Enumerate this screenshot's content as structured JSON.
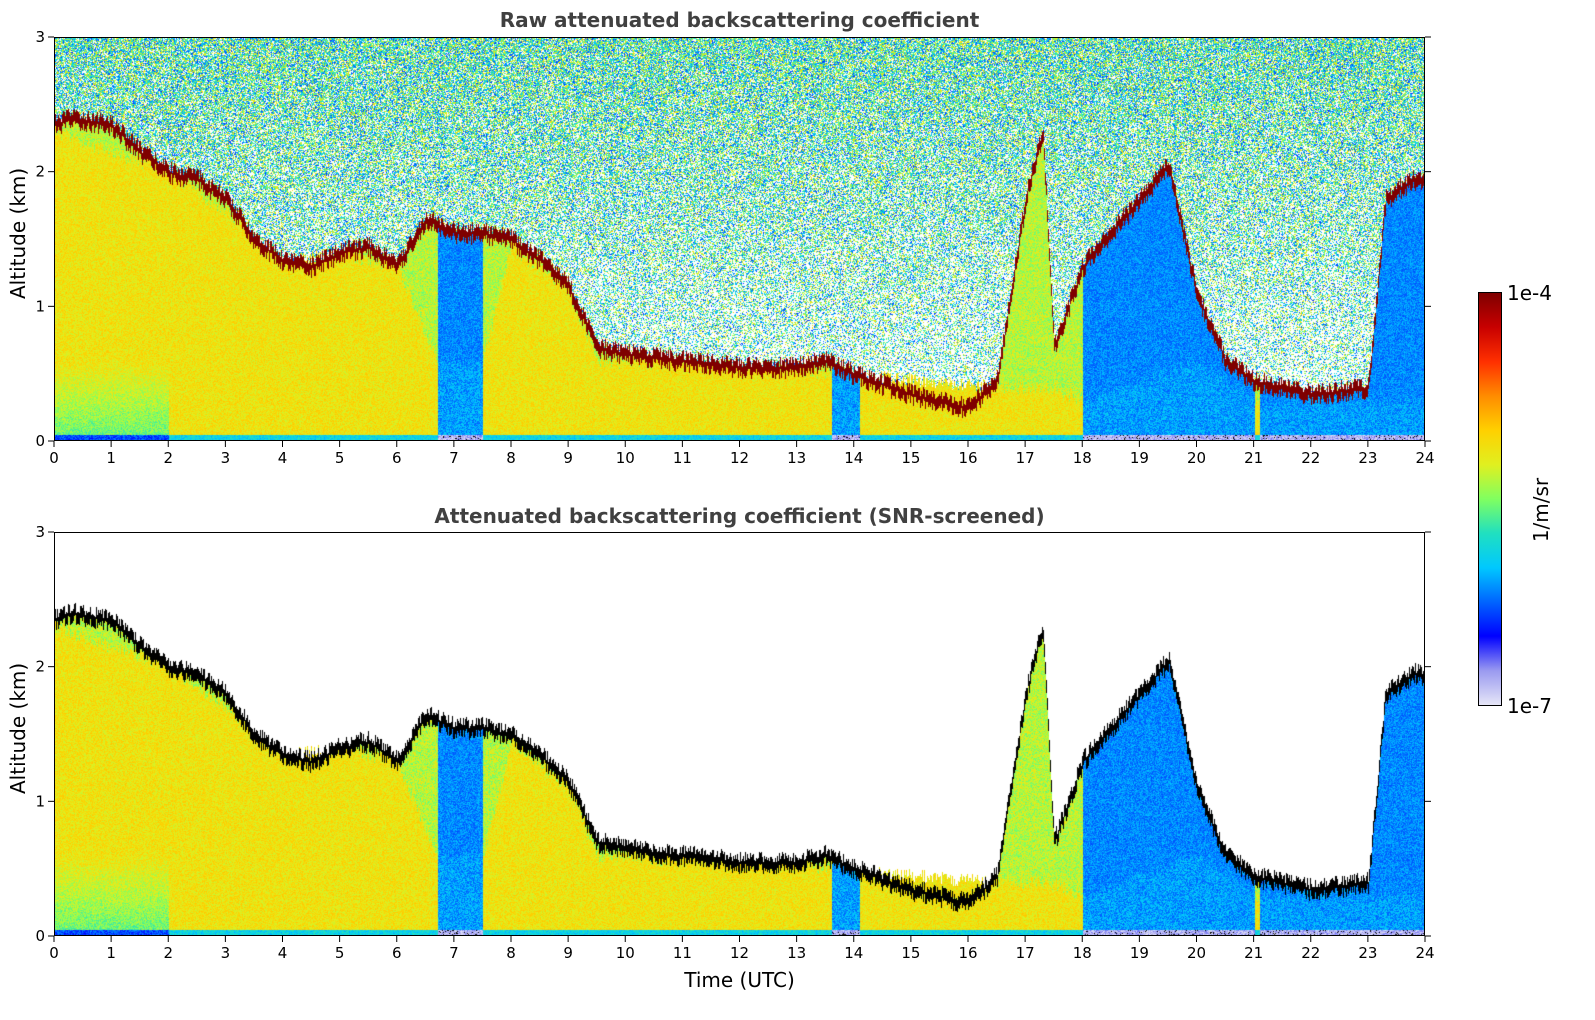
{
  "chart_data": [
    {
      "type": "heatmap",
      "title": "Raw attenuated backscattering coefficient",
      "xlabel": "",
      "ylabel": "Altitude (km)",
      "xlim": [
        0,
        24
      ],
      "ylim": [
        0,
        3
      ],
      "xticks": [
        "0",
        "1",
        "2",
        "3",
        "4",
        "5",
        "6",
        "7",
        "8",
        "9",
        "10",
        "11",
        "12",
        "13",
        "14",
        "15",
        "16",
        "17",
        "18",
        "19",
        "20",
        "21",
        "22",
        "23",
        "24"
      ],
      "yticks": [
        "0",
        "1",
        "2",
        "3"
      ],
      "noise": "raw",
      "cloud_layer_km": [
        [
          0.0,
          2.35
        ],
        [
          0.3,
          2.4
        ],
        [
          1.0,
          2.35
        ],
        [
          1.5,
          2.15
        ],
        [
          2.0,
          2.0
        ],
        [
          2.5,
          1.95
        ],
        [
          3.0,
          1.8
        ],
        [
          3.5,
          1.5
        ],
        [
          4.0,
          1.35
        ],
        [
          4.5,
          1.3
        ],
        [
          5.0,
          1.4
        ],
        [
          5.5,
          1.45
        ],
        [
          6.0,
          1.3
        ],
        [
          6.5,
          1.65
        ],
        [
          7.0,
          1.55
        ],
        [
          7.5,
          1.55
        ],
        [
          8.0,
          1.5
        ],
        [
          8.5,
          1.35
        ],
        [
          9.0,
          1.15
        ],
        [
          9.5,
          0.7
        ],
        [
          10.0,
          0.65
        ],
        [
          11.0,
          0.6
        ],
        [
          12.0,
          0.55
        ],
        [
          13.0,
          0.55
        ],
        [
          13.5,
          0.6
        ],
        [
          14.0,
          0.5
        ],
        [
          15.0,
          0.35
        ],
        [
          16.0,
          0.25
        ],
        [
          16.5,
          0.45
        ],
        [
          17.0,
          1.8
        ],
        [
          17.3,
          2.3
        ],
        [
          17.5,
          0.7
        ],
        [
          18.0,
          1.3
        ],
        [
          18.5,
          1.55
        ],
        [
          19.5,
          2.05
        ],
        [
          20.0,
          1.1
        ],
        [
          20.5,
          0.6
        ],
        [
          21.0,
          0.45
        ],
        [
          22.0,
          0.35
        ],
        [
          23.0,
          0.4
        ],
        [
          23.3,
          1.8
        ],
        [
          23.8,
          1.95
        ]
      ],
      "aerosol_top_km": [
        [
          0.0,
          2.3
        ],
        [
          2.0,
          2.0
        ],
        [
          3.0,
          1.7
        ],
        [
          4.0,
          1.35
        ],
        [
          5.0,
          1.4
        ],
        [
          6.0,
          1.3
        ],
        [
          6.7,
          0.6
        ],
        [
          7.5,
          0.6
        ],
        [
          8.0,
          1.45
        ],
        [
          9.0,
          1.1
        ],
        [
          9.5,
          0.6
        ],
        [
          14.0,
          0.5
        ],
        [
          16.5,
          0.4
        ],
        [
          17.5,
          0.4
        ],
        [
          18.0,
          0.3
        ],
        [
          20.0,
          0.6
        ],
        [
          21.0,
          0.3
        ],
        [
          24.0,
          0.3
        ]
      ]
    },
    {
      "type": "heatmap",
      "title": "Attenuated backscattering coefficient (SNR-screened)",
      "xlabel": "Time (UTC)",
      "ylabel": "Altitude (km)",
      "xlim": [
        0,
        24
      ],
      "ylim": [
        0,
        3
      ],
      "xticks": [
        "0",
        "1",
        "2",
        "3",
        "4",
        "5",
        "6",
        "7",
        "8",
        "9",
        "10",
        "11",
        "12",
        "13",
        "14",
        "15",
        "16",
        "17",
        "18",
        "19",
        "20",
        "21",
        "22",
        "23",
        "24"
      ],
      "yticks": [
        "0",
        "1",
        "2",
        "3"
      ],
      "noise": "screened"
    }
  ],
  "colorbar": {
    "label": "1/m/sr",
    "max_label": "1e-4",
    "min_label": "1e-7",
    "colormap": [
      "#e6e6f7",
      "#9a9af0",
      "#0000ff",
      "#0064ff",
      "#00c8ff",
      "#20e0c0",
      "#80ff60",
      "#e0f020",
      "#ffd000",
      "#ff8c00",
      "#ff3000",
      "#c80000",
      "#7f0000"
    ]
  }
}
